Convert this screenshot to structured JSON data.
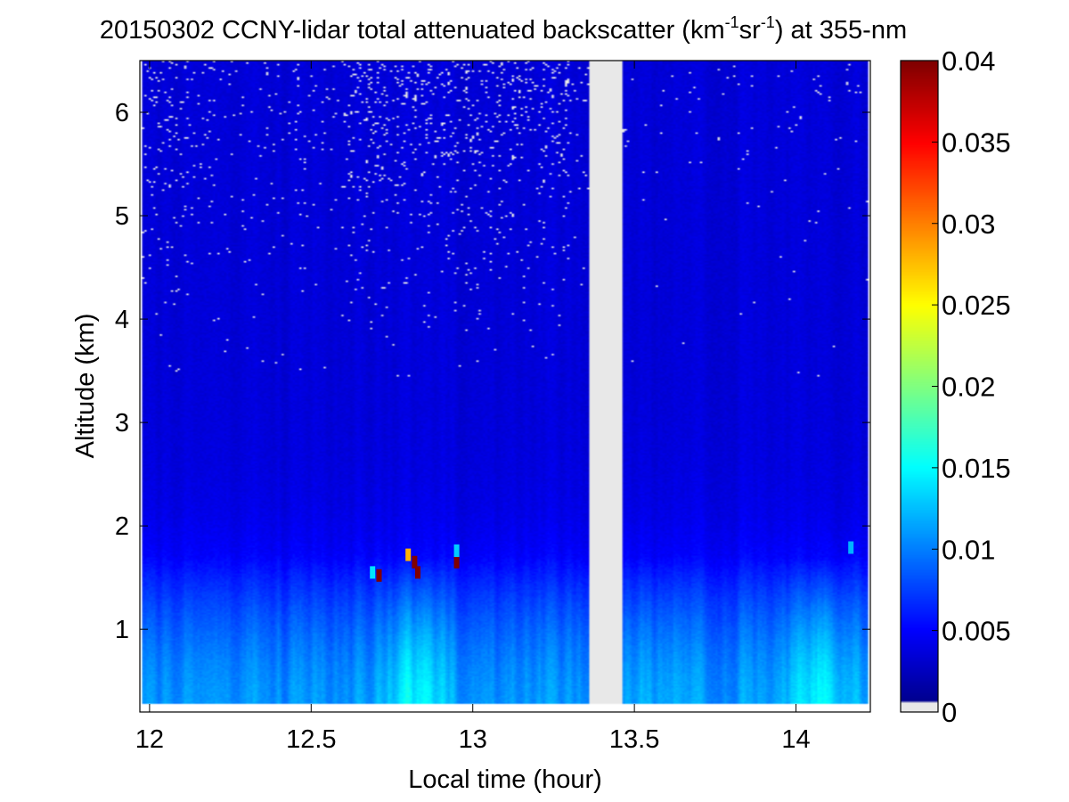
{
  "chart_data": {
    "type": "heatmap",
    "title": {
      "prefix": "20150302 CCNY-lidar total attenuated backscatter (km",
      "sup1": "-1",
      "mid": "sr",
      "sup2": "-1",
      "suffix": ") at 355-nm"
    },
    "xlabel": "Local time (hour)",
    "ylabel": "Altitude (km)",
    "xlim": [
      11.97,
      14.23
    ],
    "ylim": [
      0.2,
      6.5
    ],
    "data_extent": {
      "x": [
        11.98,
        14.22
      ],
      "y": [
        0.28,
        6.5
      ]
    },
    "x_ticks": [
      12,
      12.5,
      13,
      13.5,
      14
    ],
    "x_tick_labels": [
      "12",
      "12.5",
      "13",
      "13.5",
      "14"
    ],
    "y_ticks": [
      1,
      2,
      3,
      4,
      5,
      6
    ],
    "y_tick_labels": [
      "1",
      "2",
      "3",
      "4",
      "5",
      "6"
    ],
    "colormap": "jet",
    "color_range": [
      0,
      0.04
    ],
    "colorbar": {
      "ticks": [
        0,
        0.005,
        0.01,
        0.015,
        0.02,
        0.025,
        0.03,
        0.035,
        0.04
      ],
      "tick_labels": [
        "0",
        "0.005",
        "0.01",
        "0.015",
        "0.02",
        "0.025",
        "0.03",
        "0.035",
        "0.04"
      ],
      "zero_color": "#e8e8e8"
    },
    "no_data_gap": {
      "x": [
        13.36,
        13.46
      ],
      "color": "#e8e8e8"
    },
    "background_value": 0.0035,
    "boundary_layer": {
      "top_km": 1.7,
      "surface_value": 0.011,
      "value_at_1km": 0.0085,
      "brighter_periods": [
        {
          "x": [
            12.75,
            12.9
          ],
          "peak_value": 0.0145
        },
        {
          "x": [
            13.5,
            13.65
          ],
          "peak_value": 0.012
        },
        {
          "x": [
            14.0,
            14.15
          ],
          "peak_value": 0.0145
        }
      ]
    },
    "cloud_features": [
      {
        "x": 12.69,
        "y": 1.55,
        "value": 0.014
      },
      {
        "x": 12.71,
        "y": 1.52,
        "value": 0.04
      },
      {
        "x": 12.8,
        "y": 1.72,
        "value": 0.028
      },
      {
        "x": 12.82,
        "y": 1.65,
        "value": 0.04
      },
      {
        "x": 12.83,
        "y": 1.55,
        "value": 0.04
      },
      {
        "x": 12.95,
        "y": 1.65,
        "value": 0.04
      },
      {
        "x": 12.95,
        "y": 1.76,
        "value": 0.013
      },
      {
        "x": 14.17,
        "y": 1.79,
        "value": 0.012
      }
    ],
    "noise": "sparse zero-value (light gray) speckle above about 3.5 km, densest near 12.0-12.1 h and 12.6-13.3 h"
  }
}
